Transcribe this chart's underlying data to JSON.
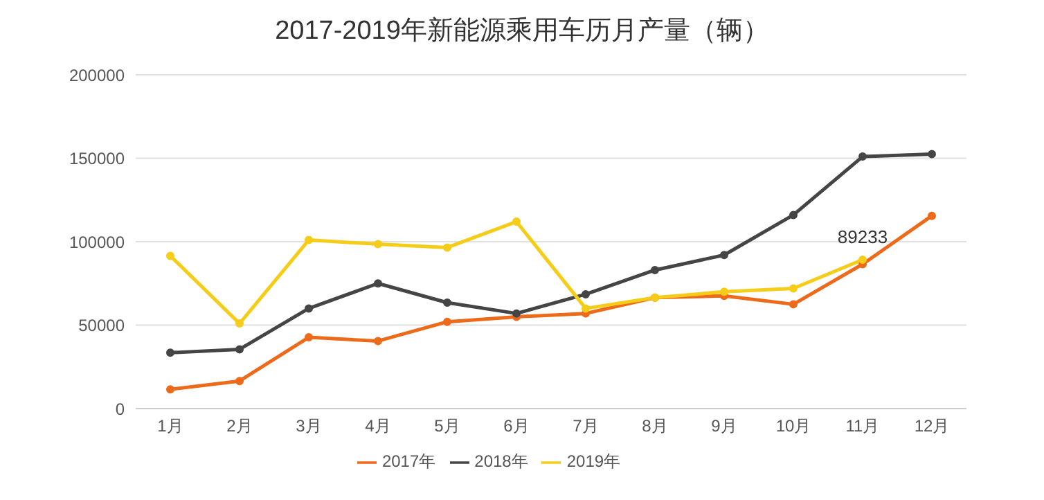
{
  "chart_data": {
    "type": "line",
    "title": "2017-2019年新能源乘用车历月产量（辆）",
    "categories": [
      "1月",
      "2月",
      "3月",
      "4月",
      "5月",
      "6月",
      "7月",
      "8月",
      "9月",
      "10月",
      "11月",
      "12月"
    ],
    "series": [
      {
        "name": "2017年",
        "color": "#ec6a1a",
        "values": [
          11500,
          16500,
          42700,
          40500,
          52000,
          55000,
          57000,
          66500,
          67500,
          62500,
          86500,
          115500
        ]
      },
      {
        "name": "2018年",
        "color": "#454545",
        "values": [
          33500,
          35500,
          60000,
          75000,
          63500,
          57000,
          68500,
          83000,
          92000,
          116000,
          151000,
          152500
        ]
      },
      {
        "name": "2019年",
        "color": "#f5cc18",
        "values": [
          91500,
          51000,
          101000,
          98500,
          96500,
          112000,
          60000,
          66500,
          70000,
          72000,
          89233,
          null
        ],
        "value_labels": [
          null,
          null,
          null,
          null,
          null,
          null,
          null,
          null,
          null,
          null,
          "89233",
          null
        ]
      }
    ],
    "ylim": [
      0,
      200000
    ],
    "yticks": [
      0,
      50000,
      100000,
      150000,
      200000
    ],
    "grid": "y",
    "legend": "bottom",
    "marker": "circle"
  }
}
